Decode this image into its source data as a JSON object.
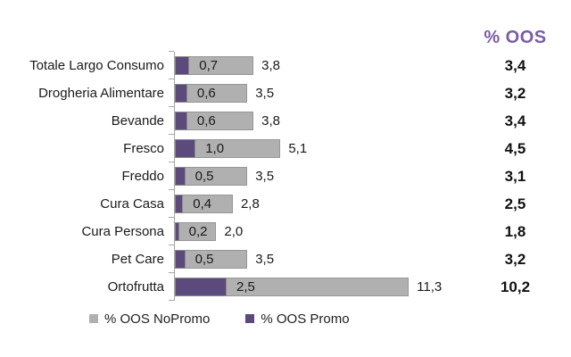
{
  "colors": {
    "header_purple": "#7a5ca6",
    "bar_gray": "#b0b0b0",
    "bar_gray_border": "#969696",
    "bar_purple": "#5b4a7b",
    "axis_gray": "#a6a6a6",
    "text_black": "#1a1a1a"
  },
  "chart_data": {
    "type": "bar",
    "orientation": "horizontal",
    "title": "% OOS",
    "categories": [
      "Totale Largo Consumo",
      "Drogheria Alimentare",
      "Bevande",
      "Fresco",
      "Freddo",
      "Cura Casa",
      "Cura Persona",
      "Pet Care",
      "Ortofrutta"
    ],
    "series": [
      {
        "name": "% OOS NoPromo",
        "color": "#b0b0b0",
        "values": [
          3.8,
          3.5,
          3.8,
          5.1,
          3.5,
          2.8,
          2.0,
          3.5,
          11.3
        ],
        "labels": [
          "3,8",
          "3,5",
          "3,8",
          "5,1",
          "3,5",
          "2,8",
          "2,0",
          "3,5",
          "11,3"
        ]
      },
      {
        "name": "% OOS Promo",
        "color": "#5b4a7b",
        "values": [
          0.7,
          0.6,
          0.6,
          1.0,
          0.5,
          0.4,
          0.2,
          0.5,
          2.5
        ],
        "labels": [
          "0,7",
          "0,6",
          "0,6",
          "1,0",
          "0,5",
          "0,4",
          "0,2",
          "0,5",
          "2,5"
        ]
      }
    ],
    "totals": {
      "header": "% OOS",
      "values": [
        3.4,
        3.2,
        3.4,
        4.5,
        3.1,
        2.5,
        1.8,
        3.2,
        10.2
      ],
      "labels": [
        "3,4",
        "3,2",
        "3,4",
        "4,5",
        "3,1",
        "2,5",
        "1,8",
        "3,2",
        "10,2"
      ]
    },
    "legend": [
      {
        "label": "% OOS NoPromo",
        "color": "#b0b0b0"
      },
      {
        "label": "% OOS Promo",
        "color": "#5b4a7b"
      }
    ],
    "xlim": [
      0,
      13.8
    ],
    "grid": false,
    "legend_position": "bottom",
    "value_label_decimal": "comma"
  }
}
